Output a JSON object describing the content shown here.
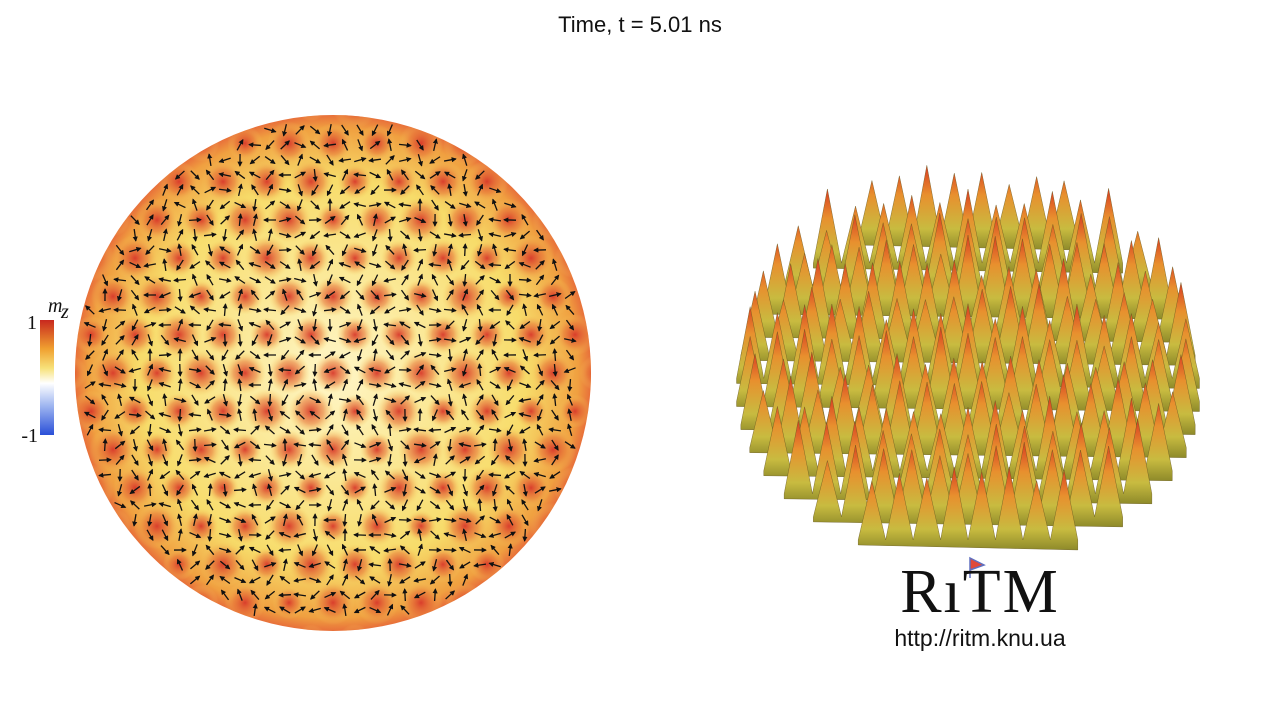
{
  "header": {
    "title": "Time, t = 5.01 ns"
  },
  "colorbar": {
    "symbol": "m",
    "subscript": "z",
    "max_label": "1",
    "min_label": "-1"
  },
  "logo": {
    "name": "RıTM",
    "url": "http://ritm.knu.ua"
  }
}
